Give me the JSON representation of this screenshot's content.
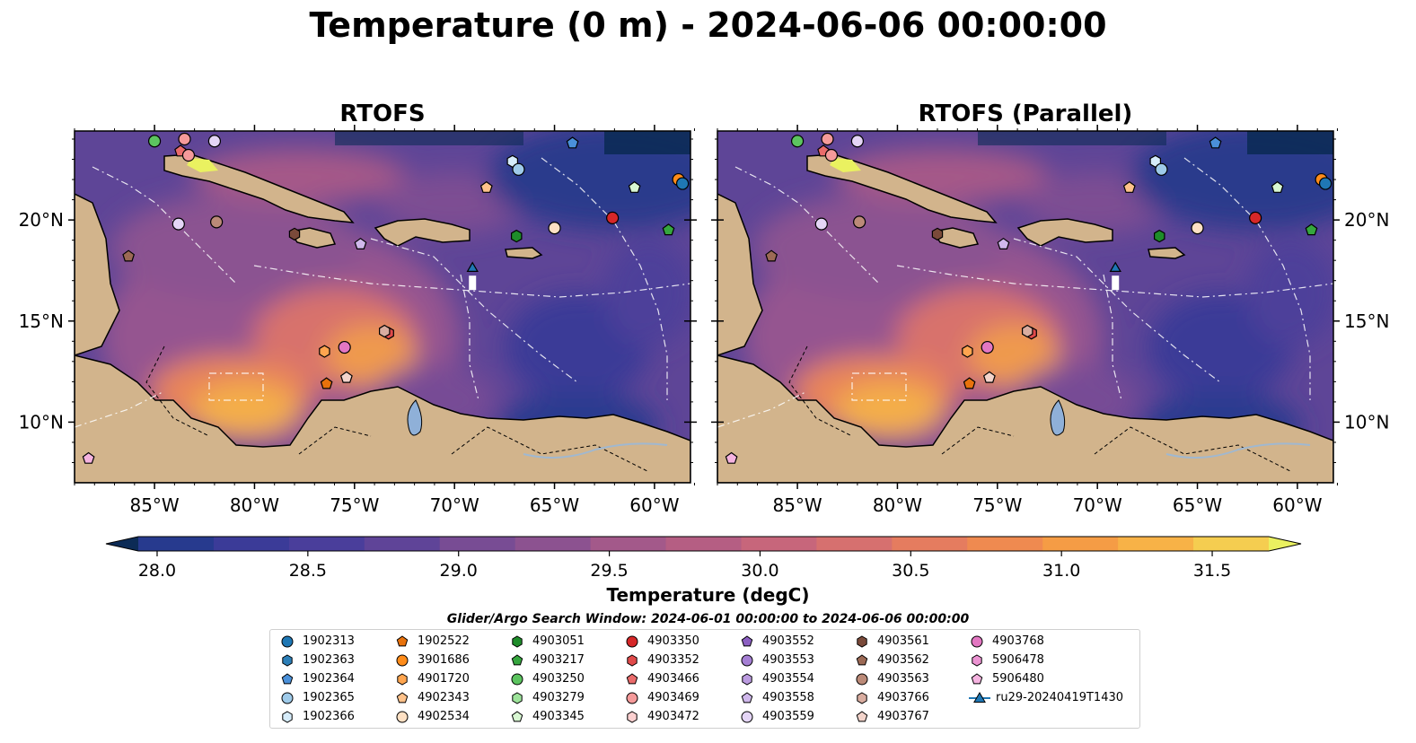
{
  "title": "Temperature (0 m) - 2024-06-06 00:00:00",
  "panels": [
    {
      "title": "RTOFS"
    },
    {
      "title": "RTOFS (Parallel)"
    }
  ],
  "x_tick_labels": [
    "85°W",
    "80°W",
    "75°W",
    "70°W",
    "65°W",
    "60°W"
  ],
  "y_tick_labels": [
    "20°N",
    "15°N",
    "10°N"
  ],
  "colorbar": {
    "label": "Temperature (degC)",
    "ticks": [
      "28.0",
      "28.5",
      "29.0",
      "29.5",
      "30.0",
      "30.5",
      "31.0",
      "31.5"
    ],
    "colors": [
      "#0c2b56",
      "#273a8e",
      "#3b3b98",
      "#4a3e9b",
      "#5f4498",
      "#784c94",
      "#8c5290",
      "#a3598a",
      "#b55e83",
      "#c7667b",
      "#d6706f",
      "#e57c5f",
      "#ef8a50",
      "#f59c45",
      "#f7b247",
      "#f5cd50",
      "#eaf160"
    ]
  },
  "search_window": "Glider/Argo Search Window: 2024-06-01 00:00:00 to 2024-06-06 00:00:00",
  "legend": [
    {
      "label": "1902313",
      "marker": "circle",
      "color": "#1f77b4"
    },
    {
      "label": "1902363",
      "marker": "hexagon",
      "color": "#2c7fb8"
    },
    {
      "label": "1902364",
      "marker": "pentagon",
      "color": "#4a90d9"
    },
    {
      "label": "1902365",
      "marker": "circle",
      "color": "#9ecae9"
    },
    {
      "label": "1902366",
      "marker": "hexagon",
      "color": "#d6ecfa"
    },
    {
      "label": "1902522",
      "marker": "pentagon",
      "color": "#e8720c"
    },
    {
      "label": "3901686",
      "marker": "circle",
      "color": "#ff8c1a"
    },
    {
      "label": "4901720",
      "marker": "hexagon",
      "color": "#ffa54f"
    },
    {
      "label": "4902343",
      "marker": "pentagon",
      "color": "#ffc28a"
    },
    {
      "label": "4902534",
      "marker": "circle",
      "color": "#ffe1c4"
    },
    {
      "label": "4903051",
      "marker": "hexagon",
      "color": "#1e8c2a"
    },
    {
      "label": "4903217",
      "marker": "pentagon",
      "color": "#35a63e"
    },
    {
      "label": "4903250",
      "marker": "circle",
      "color": "#5cc45f"
    },
    {
      "label": "4903279",
      "marker": "hexagon",
      "color": "#9de39a"
    },
    {
      "label": "4903345",
      "marker": "pentagon",
      "color": "#d8f7d2"
    },
    {
      "label": "4903350",
      "marker": "circle",
      "color": "#d62728"
    },
    {
      "label": "4903352",
      "marker": "hexagon",
      "color": "#e04a4a"
    },
    {
      "label": "4903466",
      "marker": "pentagon",
      "color": "#ea6b6b"
    },
    {
      "label": "4903469",
      "marker": "circle",
      "color": "#f59a9a"
    },
    {
      "label": "4903472",
      "marker": "hexagon",
      "color": "#fcd0d0"
    },
    {
      "label": "4903552",
      "marker": "pentagon",
      "color": "#8c5fc2"
    },
    {
      "label": "4903553",
      "marker": "circle",
      "color": "#a57fd4"
    },
    {
      "label": "4903554",
      "marker": "hexagon",
      "color": "#bb9be0"
    },
    {
      "label": "4903558",
      "marker": "pentagon",
      "color": "#d0b8ec"
    },
    {
      "label": "4903559",
      "marker": "circle",
      "color": "#e4d5f6"
    },
    {
      "label": "4903561",
      "marker": "hexagon",
      "color": "#7a4a3a"
    },
    {
      "label": "4903562",
      "marker": "pentagon",
      "color": "#9c6a55"
    },
    {
      "label": "4903563",
      "marker": "circle",
      "color": "#bb8a78"
    },
    {
      "label": "4903766",
      "marker": "hexagon",
      "color": "#d9ada0"
    },
    {
      "label": "4903767",
      "marker": "pentagon",
      "color": "#f3d4cb"
    },
    {
      "label": "4903768",
      "marker": "circle",
      "color": "#e377c2"
    },
    {
      "label": "5906478",
      "marker": "hexagon",
      "color": "#ec93d2"
    },
    {
      "label": "5906480",
      "marker": "pentagon",
      "color": "#f5b3e0"
    },
    {
      "label": "ru29-20240419T1430",
      "marker": "triangle-line",
      "color": "#1f77b4"
    }
  ],
  "markers_on_map": [
    {
      "lon": -85.0,
      "lat": 23.9,
      "id": "4903250"
    },
    {
      "lon": -83.5,
      "lat": 24.0,
      "id": "4903469"
    },
    {
      "lon": -82.0,
      "lat": 23.9,
      "id": "4903559"
    },
    {
      "lon": -83.7,
      "lat": 23.4,
      "id": "4903466"
    },
    {
      "lon": -83.3,
      "lat": 23.2,
      "id": "4903469"
    },
    {
      "lon": -83.8,
      "lat": 19.8,
      "id": "4903559"
    },
    {
      "lon": -81.9,
      "lat": 19.9,
      "id": "4903563"
    },
    {
      "lon": -78.0,
      "lat": 19.3,
      "id": "4903561"
    },
    {
      "lon": -86.3,
      "lat": 18.2,
      "id": "4903562"
    },
    {
      "lon": -74.7,
      "lat": 18.8,
      "id": "4903558"
    },
    {
      "lon": -67.1,
      "lat": 22.9,
      "id": "1902366"
    },
    {
      "lon": -66.8,
      "lat": 22.5,
      "id": "1902365"
    },
    {
      "lon": -64.1,
      "lat": 23.8,
      "id": "1902364"
    },
    {
      "lon": -68.4,
      "lat": 21.6,
      "id": "4902343"
    },
    {
      "lon": -61.0,
      "lat": 21.6,
      "id": "4903345"
    },
    {
      "lon": -58.8,
      "lat": 22.0,
      "id": "3901686"
    },
    {
      "lon": -58.6,
      "lat": 21.8,
      "id": "1902313"
    },
    {
      "lon": -62.1,
      "lat": 20.1,
      "id": "4903350"
    },
    {
      "lon": -59.3,
      "lat": 19.5,
      "id": "4903217"
    },
    {
      "lon": -66.9,
      "lat": 19.2,
      "id": "4903051"
    },
    {
      "lon": -65.0,
      "lat": 19.6,
      "id": "4902534"
    },
    {
      "lon": -76.5,
      "lat": 13.5,
      "id": "4901720"
    },
    {
      "lon": -75.5,
      "lat": 13.7,
      "id": "4903768"
    },
    {
      "lon": -73.3,
      "lat": 14.4,
      "id": "4903352"
    },
    {
      "lon": -73.5,
      "lat": 14.5,
      "id": "4903766"
    },
    {
      "lon": -76.4,
      "lat": 11.9,
      "id": "1902522"
    },
    {
      "lon": -75.4,
      "lat": 12.2,
      "id": "4903767"
    },
    {
      "lon": -88.3,
      "lat": 8.2,
      "id": "5906480"
    },
    {
      "lon": -69.1,
      "lat": 17.6,
      "id": "ru29-20240419T1430"
    }
  ]
}
